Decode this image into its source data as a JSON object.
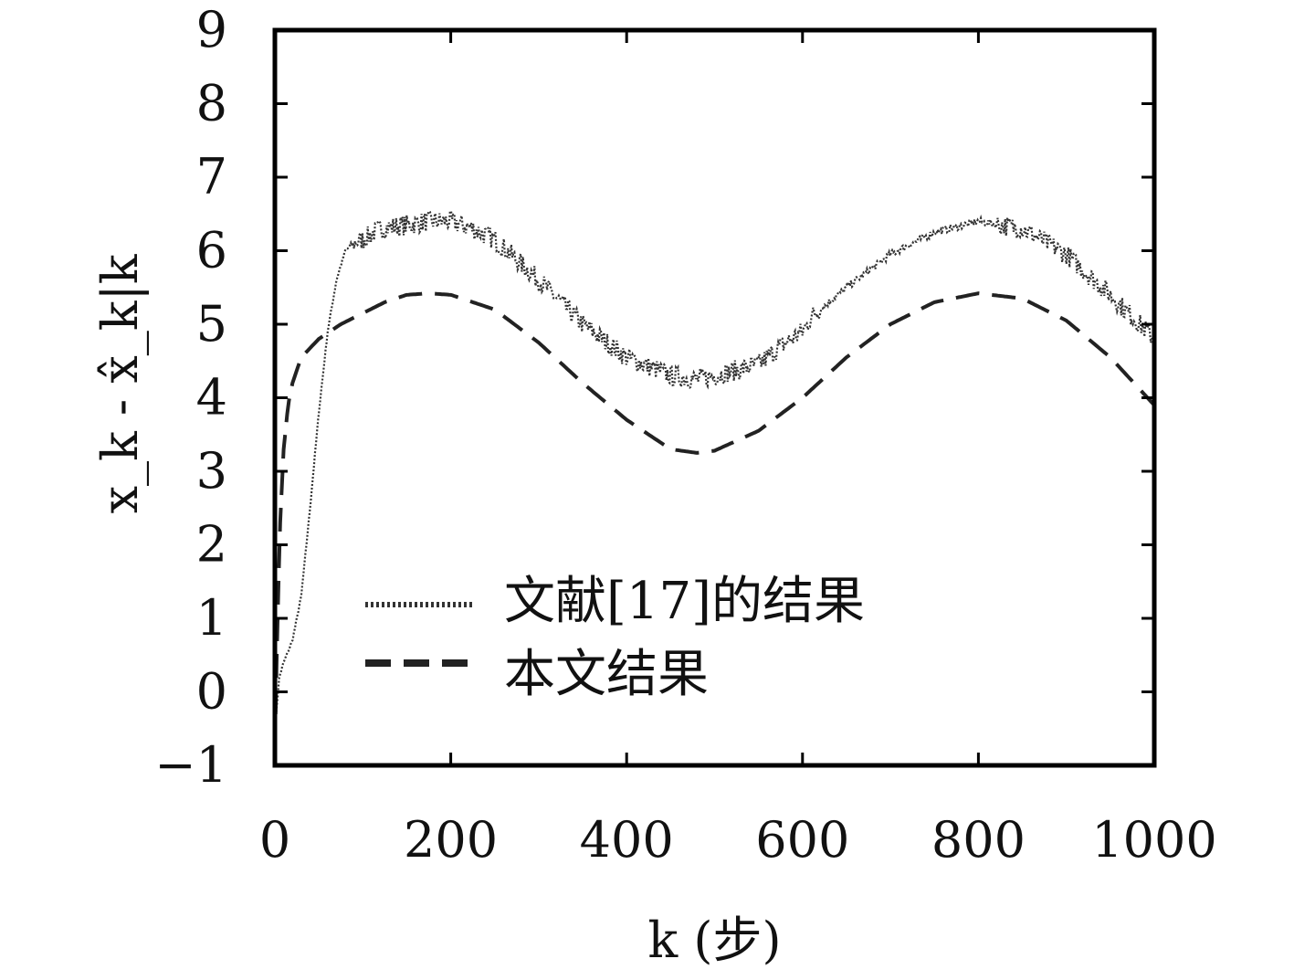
{
  "chart_data": {
    "type": "line",
    "xlabel": "k (步)",
    "ylabel": "x_k - x̂_k|k",
    "xlim": [
      0,
      1000
    ],
    "ylim": [
      -1,
      9
    ],
    "xticks": [
      0,
      200,
      400,
      600,
      800,
      1000
    ],
    "yticks": [
      -1,
      0,
      1,
      2,
      3,
      4,
      5,
      6,
      7,
      8,
      9
    ],
    "xtick_labels": [
      "0",
      "200",
      "400",
      "600",
      "800",
      "1000"
    ],
    "ytick_labels": [
      "−1",
      "0",
      "1",
      "2",
      "3",
      "4",
      "5",
      "6",
      "7",
      "8",
      "9"
    ],
    "legend_position": "lower-left",
    "grid": false,
    "series": [
      {
        "name": "文献[17]的结果",
        "style": "dotted-noisy",
        "color": "#333333",
        "x": [
          0,
          5,
          10,
          20,
          30,
          40,
          50,
          60,
          70,
          80,
          90,
          100,
          120,
          150,
          175,
          200,
          225,
          250,
          300,
          350,
          400,
          450,
          480,
          500,
          550,
          575,
          600,
          610,
          650,
          700,
          750,
          800,
          850,
          900,
          950,
          1000
        ],
        "y": [
          -0.5,
          0.2,
          0.4,
          0.7,
          1.3,
          2.5,
          3.8,
          4.9,
          5.6,
          6.0,
          6.1,
          6.15,
          6.3,
          6.35,
          6.4,
          6.4,
          6.3,
          6.15,
          5.6,
          5.0,
          4.55,
          4.3,
          4.25,
          4.3,
          4.45,
          4.7,
          4.9,
          5.1,
          5.5,
          5.95,
          6.25,
          6.4,
          6.3,
          5.95,
          5.4,
          4.8
        ]
      },
      {
        "name": "本文结果",
        "style": "dashed",
        "color": "#222222",
        "x": [
          0,
          3,
          6,
          10,
          15,
          20,
          30,
          50,
          75,
          100,
          125,
          150,
          175,
          200,
          250,
          300,
          350,
          400,
          450,
          480,
          500,
          550,
          600,
          650,
          700,
          750,
          800,
          850,
          900,
          950,
          1000
        ],
        "y": [
          -0.8,
          1.0,
          2.3,
          3.3,
          3.9,
          4.2,
          4.55,
          4.8,
          5.0,
          5.15,
          5.3,
          5.4,
          5.42,
          5.4,
          5.2,
          4.75,
          4.2,
          3.7,
          3.3,
          3.25,
          3.28,
          3.55,
          4.0,
          4.55,
          5.0,
          5.3,
          5.42,
          5.35,
          5.05,
          4.55,
          3.9
        ]
      }
    ]
  }
}
